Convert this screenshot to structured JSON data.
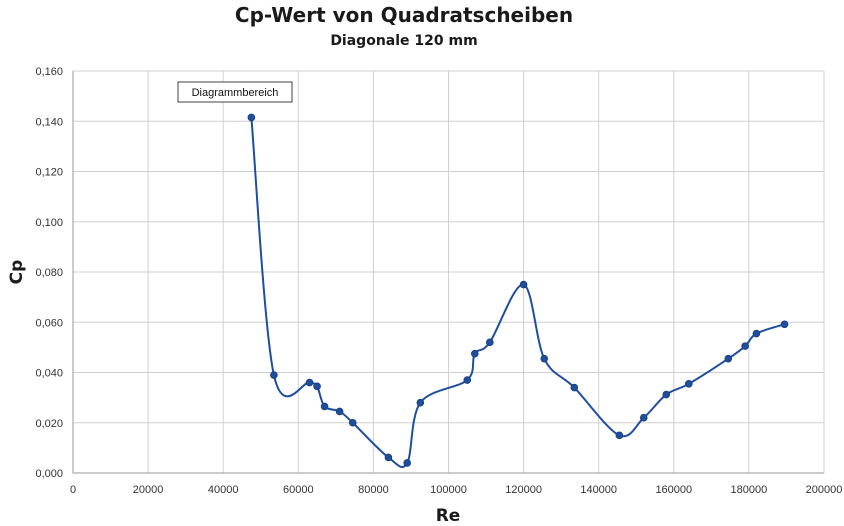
{
  "chart_data": {
    "type": "line",
    "title": "Cp-Wert von Quadratscheiben",
    "subtitle": "Diagonale 120 mm",
    "xlabel": "Re",
    "ylabel": "Cp",
    "xlim": [
      0,
      200000
    ],
    "ylim": [
      0,
      0.16
    ],
    "xticks": [
      0,
      20000,
      40000,
      60000,
      80000,
      100000,
      120000,
      140000,
      160000,
      180000,
      200000
    ],
    "xtick_labels": [
      "0",
      "20000",
      "40000",
      "60000",
      "80000",
      "100000",
      "120000",
      "140000",
      "160000",
      "180000",
      "200000"
    ],
    "yticks": [
      0,
      0.02,
      0.04,
      0.06,
      0.08,
      0.1,
      0.12,
      0.14,
      0.16
    ],
    "ytick_labels": [
      "0,000",
      "0,020",
      "0,040",
      "0,060",
      "0,080",
      "0,100",
      "0,120",
      "0,140",
      "0,160"
    ],
    "grid": true,
    "smooth": true,
    "series": [
      {
        "color": "#1f4e9c",
        "points": [
          [
            47500,
            0.1415
          ],
          [
            53500,
            0.039
          ],
          [
            63000,
            0.036
          ],
          [
            65000,
            0.0345
          ],
          [
            67000,
            0.0265
          ],
          [
            71000,
            0.0245
          ],
          [
            74500,
            0.02
          ],
          [
            84000,
            0.0062
          ],
          [
            89000,
            0.004
          ],
          [
            92500,
            0.028
          ],
          [
            105000,
            0.037
          ],
          [
            107000,
            0.0475
          ],
          [
            111000,
            0.052
          ],
          [
            120000,
            0.075
          ],
          [
            125500,
            0.0455
          ],
          [
            133500,
            0.034
          ],
          [
            145500,
            0.015
          ],
          [
            152000,
            0.022
          ],
          [
            158000,
            0.0312
          ],
          [
            164000,
            0.0355
          ],
          [
            174500,
            0.0455
          ],
          [
            179000,
            0.0505
          ],
          [
            182000,
            0.0555
          ],
          [
            189500,
            0.0592
          ]
        ]
      }
    ],
    "annotation": "Diagrammbereich"
  }
}
